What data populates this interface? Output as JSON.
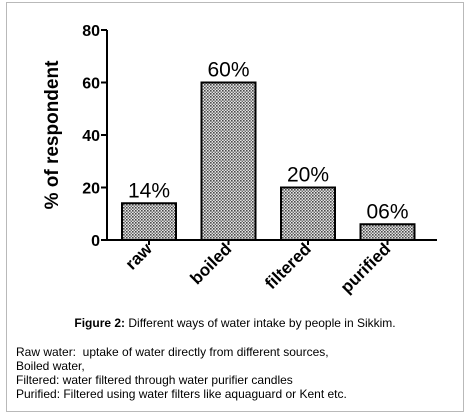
{
  "chart_data": {
    "type": "bar",
    "categories": [
      "raw",
      "boiled",
      "filtered",
      "purified"
    ],
    "values": [
      14,
      60,
      20,
      6
    ],
    "data_labels": [
      "14%",
      "60%",
      "20%",
      "06%"
    ],
    "ylabel": "% of respondent",
    "ylim": [
      0,
      80
    ],
    "yticks": [
      0,
      20,
      40,
      60,
      80
    ],
    "bar_fill": "#8a8a8a",
    "bar_pattern": "crosshatch",
    "grid": false
  },
  "caption": {
    "lead": "Figure 2:",
    "text": " Different ways of water intake by people in Sikkim."
  },
  "notes": [
    "Raw water:  uptake of water directly from different sources,",
    "Boiled water,",
    "Filtered: water filtered through water purifier candles",
    "Purified: Filtered using water filters like aquaguard or Kent etc."
  ]
}
